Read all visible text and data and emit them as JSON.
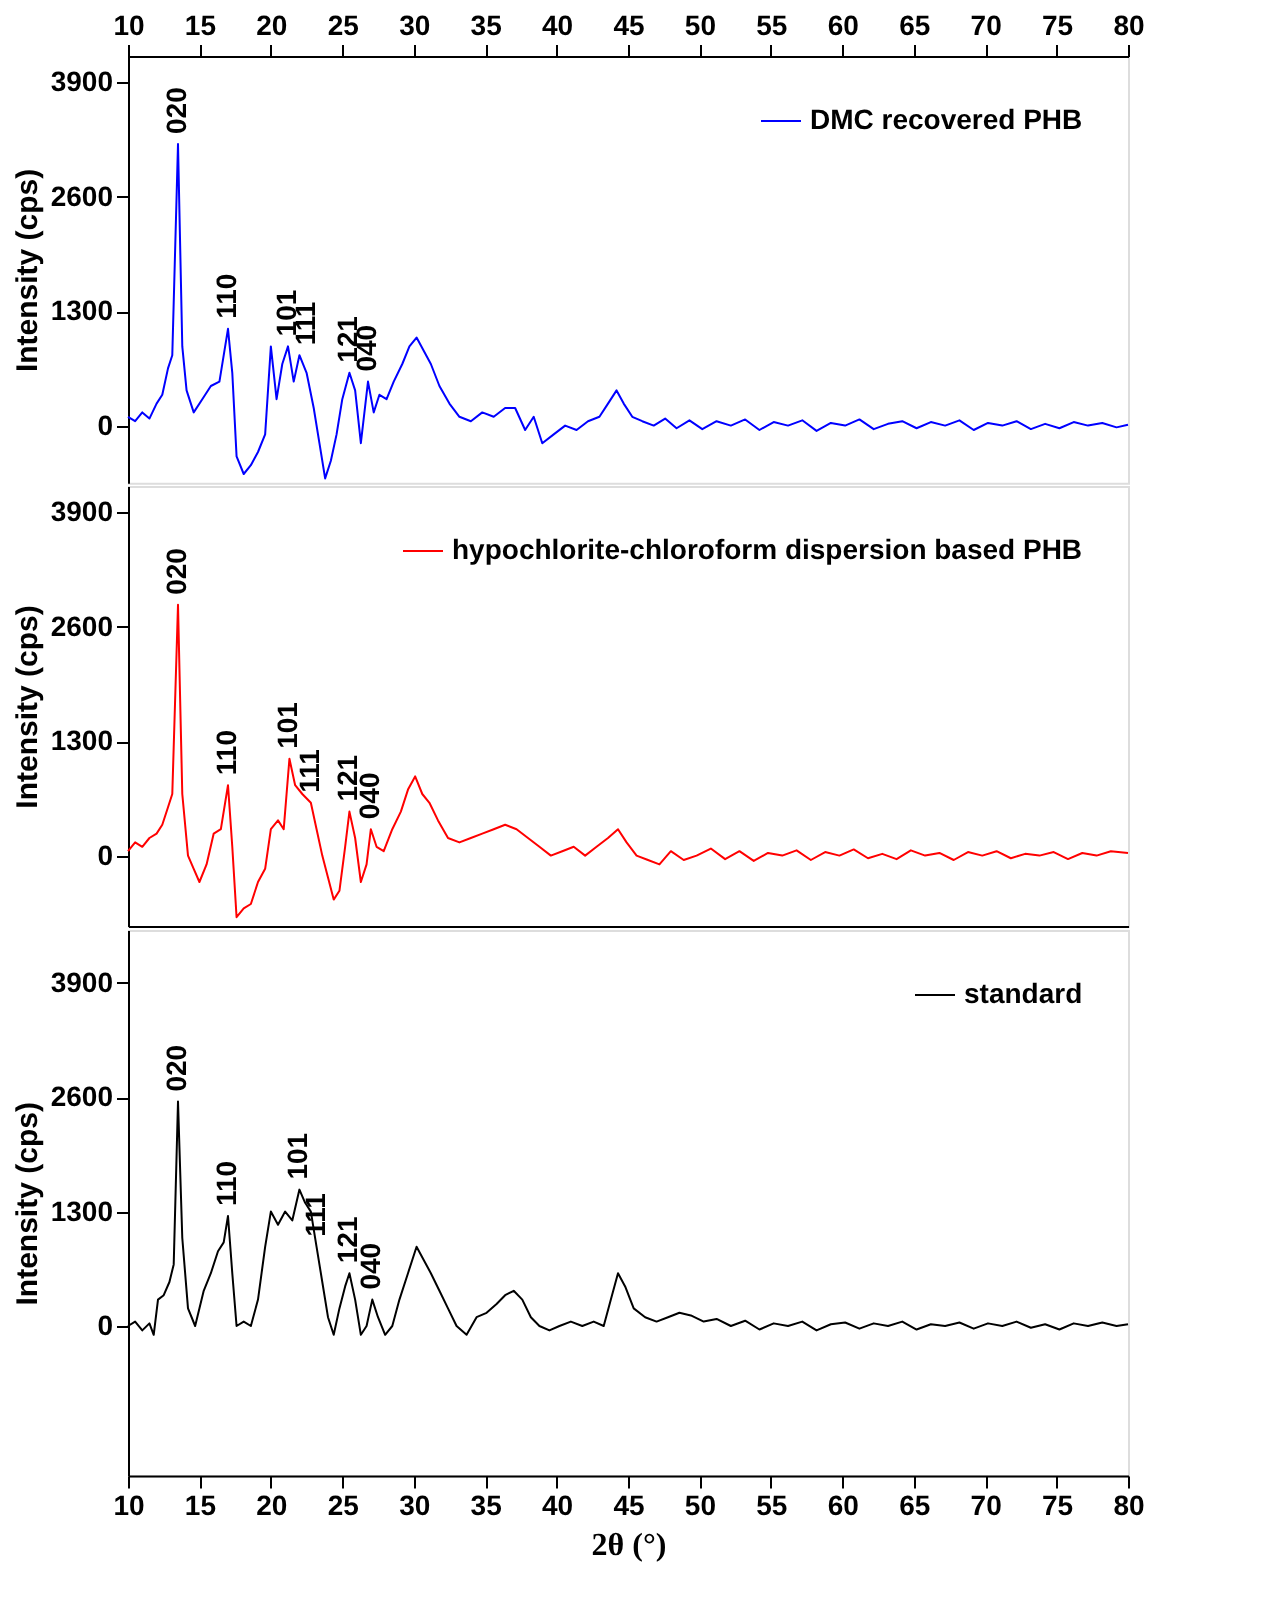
{
  "chart_data": [
    {
      "type": "line",
      "ylabel": "Intensity (cps)",
      "xlim": [
        10,
        80
      ],
      "xticks": [
        10,
        15,
        20,
        25,
        30,
        35,
        40,
        45,
        50,
        55,
        60,
        65,
        70,
        75,
        80
      ],
      "ylim": [
        -650,
        4200
      ],
      "yticks": [
        0,
        1300,
        2600,
        3900
      ],
      "grid": false,
      "legend": "top right",
      "x": [
        10,
        10.5,
        11,
        11.5,
        12,
        12.4,
        12.8,
        13.1,
        13.5,
        13.8,
        14.1,
        14.6,
        15.2,
        15.8,
        16.4,
        17,
        17.3,
        17.6,
        18.1,
        18.6,
        19.1,
        19.6,
        20,
        20.4,
        20.8,
        21.2,
        21.6,
        22,
        22.5,
        23,
        23.4,
        23.8,
        24.2,
        24.6,
        25,
        25.5,
        25.9,
        26.3,
        26.8,
        27.2,
        27.6,
        28.1,
        28.6,
        29.2,
        29.7,
        30.2,
        30.7,
        31.2,
        31.8,
        32.5,
        33.2,
        34,
        34.8,
        35.6,
        36.4,
        37.1,
        37.8,
        38.4,
        39,
        39.8,
        40.6,
        41.4,
        42.2,
        43,
        43.6,
        44.2,
        44.7,
        45.3,
        46,
        46.8,
        47.6,
        48.4,
        49.3,
        50.2,
        51.2,
        52.2,
        53.2,
        54.2,
        55.2,
        56.2,
        57.2,
        58.2,
        59.2,
        60.2,
        61.2,
        62.2,
        63.2,
        64.2,
        65.2,
        66.2,
        67.2,
        68.2,
        69.2,
        70.2,
        71.2,
        72.2,
        73.2,
        74.2,
        75.2,
        76.2,
        77.2,
        78.2,
        79.2,
        80
      ],
      "series": [
        {
          "name": "DMC recovered PHB",
          "color": "#0000ff",
          "values": [
            100,
            50,
            150,
            80,
            250,
            350,
            650,
            800,
            3200,
            900,
            400,
            150,
            300,
            450,
            500,
            1100,
            600,
            -350,
            -550,
            -450,
            -300,
            -100,
            900,
            300,
            700,
            900,
            500,
            800,
            600,
            200,
            -200,
            -600,
            -400,
            -100,
            300,
            600,
            400,
            -200,
            500,
            150,
            350,
            300,
            500,
            700,
            900,
            1000,
            850,
            700,
            450,
            250,
            100,
            50,
            150,
            100,
            200,
            200,
            -50,
            100,
            -200,
            -100,
            0,
            -50,
            50,
            100,
            250,
            400,
            250,
            100,
            50,
            0,
            80,
            -30,
            60,
            -40,
            50,
            0,
            70,
            -50,
            40,
            0,
            60,
            -60,
            30,
            0,
            70,
            -40,
            20,
            50,
            -30,
            40,
            0,
            60,
            -50,
            30,
            0,
            50,
            -40,
            20,
            -30,
            40,
            0,
            30,
            -20,
            10
          ]
        }
      ],
      "annotations": [
        {
          "text": "020",
          "x": 13.5,
          "y": 3200
        },
        {
          "text": "110",
          "x": 17,
          "y": 1100
        },
        {
          "text": "101",
          "x": 21.2,
          "y": 900
        },
        {
          "text": "111",
          "x": 22.5,
          "y": 800
        },
        {
          "text": "121",
          "x": 25.5,
          "y": 600
        },
        {
          "text": "040",
          "x": 26.8,
          "y": 500
        }
      ]
    },
    {
      "type": "line",
      "ylabel": "Intensity (cps)",
      "xlim": [
        10,
        80
      ],
      "tick_labels": "y",
      "ylim": [
        -800,
        4200
      ],
      "yticks": [
        0,
        1300,
        2600,
        3900
      ],
      "grid": false,
      "legend": "top right",
      "x": [
        10,
        10.5,
        11,
        11.5,
        12,
        12.4,
        12.8,
        13.1,
        13.5,
        13.8,
        14.2,
        14.6,
        15,
        15.5,
        16,
        16.5,
        17,
        17.3,
        17.6,
        18.1,
        18.6,
        19.1,
        19.6,
        20,
        20.5,
        20.9,
        21.3,
        21.7,
        22.2,
        22.8,
        23.2,
        23.6,
        24,
        24.4,
        24.8,
        25.2,
        25.5,
        25.9,
        26.3,
        26.7,
        27,
        27.4,
        27.9,
        28.5,
        29.1,
        29.6,
        30.1,
        30.6,
        31.1,
        31.7,
        32.4,
        33.2,
        34,
        34.8,
        35.6,
        36.4,
        37.2,
        38,
        38.8,
        39.6,
        40.4,
        41.2,
        42,
        42.8,
        43.6,
        44.3,
        44.9,
        45.6,
        46.4,
        47.2,
        48,
        48.9,
        49.8,
        50.8,
        51.8,
        52.8,
        53.8,
        54.8,
        55.8,
        56.8,
        57.8,
        58.8,
        59.8,
        60.8,
        61.8,
        62.8,
        63.8,
        64.8,
        65.8,
        66.8,
        67.8,
        68.8,
        69.8,
        70.8,
        71.8,
        72.8,
        73.8,
        74.8,
        75.8,
        76.8,
        77.8,
        78.8,
        80
      ],
      "series": [
        {
          "name": "hypochlorite-chloroform dispersion based PHB",
          "color": "#ff0000",
          "values": [
            50,
            150,
            100,
            200,
            250,
            350,
            550,
            700,
            2850,
            700,
            0,
            -150,
            -300,
            -100,
            250,
            300,
            800,
            100,
            -700,
            -600,
            -550,
            -300,
            -150,
            300,
            400,
            300,
            1100,
            800,
            700,
            600,
            300,
            0,
            -250,
            -500,
            -400,
            100,
            500,
            200,
            -300,
            -100,
            300,
            100,
            50,
            300,
            500,
            750,
            900,
            700,
            600,
            400,
            200,
            150,
            200,
            250,
            300,
            350,
            300,
            200,
            100,
            0,
            50,
            100,
            0,
            100,
            200,
            300,
            150,
            0,
            -50,
            -100,
            50,
            -50,
            0,
            80,
            -40,
            50,
            -60,
            30,
            0,
            60,
            -50,
            40,
            0,
            70,
            -30,
            20,
            -40,
            60,
            0,
            30,
            -50,
            40,
            0,
            50,
            -30,
            20,
            0,
            40,
            -40,
            30,
            0,
            50,
            30
          ]
        }
      ],
      "annotations": [
        {
          "text": "020",
          "x": 13.5,
          "y": 2850
        },
        {
          "text": "110",
          "x": 17,
          "y": 800
        },
        {
          "text": "101",
          "x": 21.3,
          "y": 1100
        },
        {
          "text": "111",
          "x": 22.8,
          "y": 600
        },
        {
          "text": "121",
          "x": 25.5,
          "y": 500
        },
        {
          "text": "040",
          "x": 27,
          "y": 300
        }
      ]
    },
    {
      "type": "line",
      "ylabel": "Intensity (cps)",
      "xlabel": "2θ (°)",
      "xlim": [
        10,
        80
      ],
      "xticks": [
        10,
        15,
        20,
        25,
        30,
        35,
        40,
        45,
        50,
        55,
        60,
        65,
        70,
        75,
        80
      ],
      "ylim": [
        -1700,
        4500
      ],
      "yticks": [
        0,
        1300,
        2600,
        3900
      ],
      "grid": false,
      "legend": "top right",
      "x": [
        10,
        10.5,
        11,
        11.5,
        11.8,
        12.1,
        12.5,
        12.9,
        13.2,
        13.5,
        13.8,
        14.2,
        14.7,
        15.3,
        15.8,
        16.3,
        16.7,
        17,
        17.3,
        17.6,
        18.1,
        18.6,
        19.1,
        19.6,
        20,
        20.5,
        21,
        21.5,
        22,
        22.4,
        22.8,
        23.2,
        23.6,
        24,
        24.4,
        24.8,
        25.2,
        25.5,
        25.9,
        26.3,
        26.7,
        27.1,
        27.5,
        28,
        28.5,
        29,
        29.6,
        30.2,
        30.7,
        31.2,
        31.8,
        32.4,
        33,
        33.7,
        34.4,
        35.1,
        35.8,
        36.4,
        37,
        37.6,
        38.2,
        38.8,
        39.5,
        40.2,
        41,
        41.8,
        42.6,
        43.3,
        43.8,
        44.3,
        44.8,
        45.4,
        46.2,
        47,
        47.8,
        48.6,
        49.4,
        50.3,
        51.2,
        52.2,
        53.2,
        54.2,
        55.2,
        56.2,
        57.2,
        58.2,
        59.2,
        60.2,
        61.2,
        62.2,
        63.2,
        64.2,
        65.2,
        66.2,
        67.2,
        68.2,
        69.2,
        70.2,
        71.2,
        72.2,
        73.2,
        74.2,
        75.2,
        76.2,
        77.2,
        78.2,
        79.2,
        80
      ],
      "series": [
        {
          "name": "standard",
          "color": "#000000",
          "values": [
            0,
            50,
            -50,
            30,
            -100,
            300,
            350,
            500,
            700,
            2550,
            1000,
            200,
            0,
            400,
            600,
            850,
            950,
            1250,
            600,
            0,
            50,
            0,
            300,
            900,
            1300,
            1150,
            1300,
            1200,
            1550,
            1400,
            1300,
            900,
            500,
            100,
            -100,
            200,
            450,
            600,
            300,
            -100,
            0,
            300,
            100,
            -100,
            0,
            300,
            600,
            900,
            750,
            600,
            400,
            200,
            0,
            -100,
            100,
            150,
            250,
            350,
            400,
            300,
            100,
            0,
            -50,
            0,
            50,
            0,
            50,
            0,
            300,
            600,
            450,
            200,
            100,
            50,
            100,
            150,
            120,
            50,
            80,
            0,
            60,
            -40,
            30,
            0,
            50,
            -50,
            20,
            40,
            -30,
            30,
            0,
            50,
            -40,
            20,
            0,
            40,
            -30,
            30,
            0,
            50,
            -20,
            20,
            -40,
            30,
            0,
            40,
            0,
            20
          ]
        }
      ],
      "annotations": [
        {
          "text": "020",
          "x": 13.5,
          "y": 2550
        },
        {
          "text": "110",
          "x": 17,
          "y": 1250
        },
        {
          "text": "101",
          "x": 22,
          "y": 1550
        },
        {
          "text": "111",
          "x": 23.2,
          "y": 900
        },
        {
          "text": "121",
          "x": 25.5,
          "y": 600
        },
        {
          "text": "040",
          "x": 27.1,
          "y": 300
        }
      ]
    }
  ]
}
